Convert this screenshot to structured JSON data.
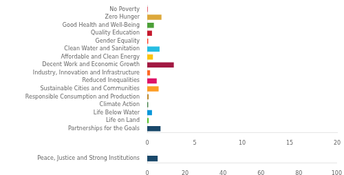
{
  "chart_data": [
    {
      "type": "bar",
      "orientation": "horizontal",
      "categories": [
        "No Poverty",
        "Zero Hunger",
        "Good Health and Well-Being",
        "Quality Education",
        "Gender Equality",
        "Clean Water and Sanitation",
        "Affordable and Clean Energy",
        "Decent Work and Economic Growth",
        "Industry, Innovation and Infrastructure",
        "Reduced Inequalities",
        "Sustainable Cities and Communities",
        "Responsible Consumption and Production",
        "Climate Action",
        "Life Below Water",
        "Life on Land",
        "Partnerships for the Goals"
      ],
      "values": [
        0.05,
        1.5,
        0.7,
        0.5,
        0.1,
        1.3,
        0.6,
        2.8,
        0.3,
        1.0,
        1.2,
        0.15,
        0.1,
        0.5,
        0.15,
        1.4
      ],
      "colors": [
        "#e5243b",
        "#dda83a",
        "#4c9f38",
        "#c5192d",
        "#ff3a21",
        "#26bde2",
        "#fcc30b",
        "#a21942",
        "#fd6925",
        "#dd1367",
        "#fd9d24",
        "#bf8b2e",
        "#3f7e44",
        "#0a97d9",
        "#56c02b",
        "#19486a"
      ],
      "xlim": [
        0,
        20
      ],
      "xticks": [
        0,
        5,
        10,
        15,
        20
      ],
      "grid": false
    },
    {
      "type": "bar",
      "orientation": "horizontal",
      "categories": [
        "Peace, Justice and Strong Institutions"
      ],
      "values": [
        5.5
      ],
      "color": "#19486a",
      "xlim": [
        0,
        100
      ],
      "xticks": [
        0,
        20,
        40,
        60,
        80,
        100
      ],
      "grid": false
    }
  ]
}
